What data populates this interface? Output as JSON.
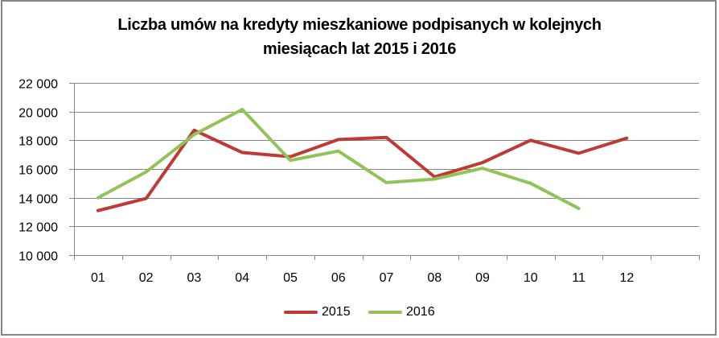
{
  "chart_data": {
    "type": "line",
    "title": "Liczba umów na kredyty mieszkaniowe podpisanych w kolejnych miesiącach lat 2015 i 2016",
    "title_lines": [
      "Liczba umów na kredyty mieszkaniowe podpisanych w kolejnych",
      "miesiącach lat 2015 i 2016"
    ],
    "xlabel": "",
    "ylabel": "",
    "categories": [
      "01",
      "02",
      "03",
      "04",
      "05",
      "06",
      "07",
      "08",
      "09",
      "10",
      "11",
      "12",
      ""
    ],
    "ylim": [
      10000,
      22000
    ],
    "yticks": [
      10000,
      12000,
      14000,
      16000,
      18000,
      20000,
      22000
    ],
    "ytick_labels": [
      "10 000",
      "12 000",
      "14 000",
      "16 000",
      "18 000",
      "20 000",
      "22 000"
    ],
    "grid": true,
    "legend_position": "bottom",
    "series": [
      {
        "name": "2015",
        "color": "#BE3B35",
        "values": [
          13100,
          13950,
          18700,
          17150,
          16850,
          18050,
          18200,
          15450,
          16450,
          18000,
          17100,
          18150
        ]
      },
      {
        "name": "2016",
        "color": "#92C35A",
        "values": [
          14000,
          15800,
          18400,
          20150,
          16600,
          17250,
          15050,
          15300,
          16050,
          15000,
          13250
        ]
      }
    ]
  },
  "colors": {
    "gridline": "#868686",
    "border": "#868686",
    "axis": "#868686"
  }
}
